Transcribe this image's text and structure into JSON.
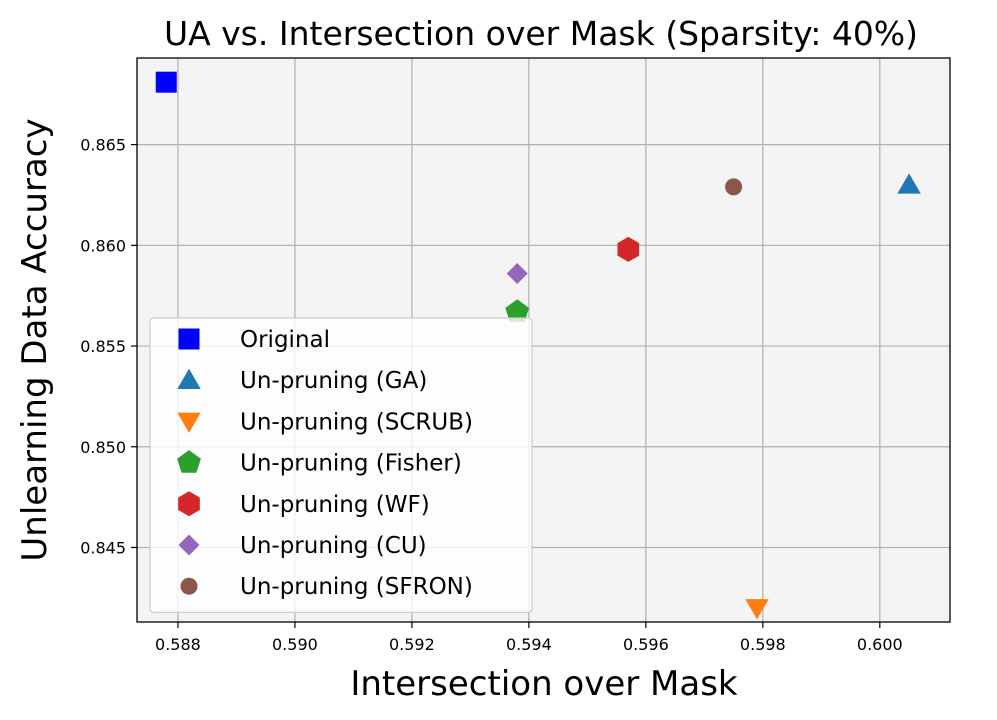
{
  "chart_data": {
    "type": "scatter",
    "title": "UA vs. Intersection over Mask (Sparsity: 40%)",
    "xlabel": "Intersection over Mask",
    "ylabel": "Unlearning Data Accuracy",
    "xlim": [
      0.5873,
      0.6012
    ],
    "ylim": [
      0.8413,
      0.8693
    ],
    "xticks": [
      0.588,
      0.59,
      0.592,
      0.594,
      0.596,
      0.598,
      0.6
    ],
    "xtick_labels": [
      "0.588",
      "0.590",
      "0.592",
      "0.594",
      "0.596",
      "0.598",
      "0.600"
    ],
    "yticks": [
      0.845,
      0.85,
      0.855,
      0.86,
      0.865
    ],
    "ytick_labels": [
      "0.845",
      "0.850",
      "0.855",
      "0.860",
      "0.865"
    ],
    "grid": true,
    "legend_position": "lower-left",
    "background": "#f4f4f4",
    "series": [
      {
        "name": "Original",
        "marker": "square",
        "color": "#0000ff",
        "x": 0.5878,
        "y": 0.8681
      },
      {
        "name": "Un-pruning (GA)",
        "marker": "triangle-up",
        "color": "#1f77b4",
        "x": 0.6005,
        "y": 0.863
      },
      {
        "name": "Un-pruning (SCRUB)",
        "marker": "triangle-down",
        "color": "#ff7f0e",
        "x": 0.5979,
        "y": 0.842
      },
      {
        "name": "Un-pruning (Fisher)",
        "marker": "pentagon",
        "color": "#2ca02c",
        "x": 0.5938,
        "y": 0.8567
      },
      {
        "name": "Un-pruning (WF)",
        "marker": "hexagon",
        "color": "#d62728",
        "x": 0.5957,
        "y": 0.8598
      },
      {
        "name": "Un-pruning (CU)",
        "marker": "diamond",
        "color": "#9467bd",
        "x": 0.5938,
        "y": 0.8586
      },
      {
        "name": "Un-pruning (SFRON)",
        "marker": "circle",
        "color": "#8c564b",
        "x": 0.5975,
        "y": 0.8629
      }
    ]
  }
}
